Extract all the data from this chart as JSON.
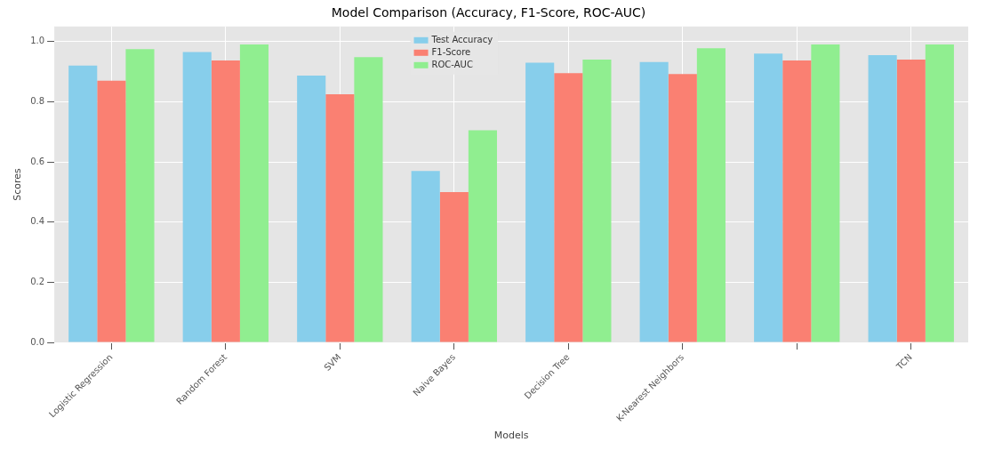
{
  "chart_data": {
    "type": "bar",
    "title": "Model Comparison (Accuracy, F1-Score, ROC-AUC)",
    "xlabel": "Models",
    "ylabel": "Scores",
    "categories": [
      "Logistic Regression",
      "Random Forest",
      "SVM",
      "Naive Bayes",
      "Decision Tree",
      "K-Nearest Neighbors",
      null,
      "TCN"
    ],
    "series": [
      {
        "name": "Test Accuracy",
        "color": "#87ceeb",
        "values": [
          0.92,
          0.965,
          0.887,
          0.57,
          0.93,
          0.932,
          0.96,
          0.955
        ]
      },
      {
        "name": "F1-Score",
        "color": "#fa8072",
        "values": [
          0.87,
          0.937,
          0.825,
          0.5,
          0.895,
          0.892,
          0.937,
          0.94
        ]
      },
      {
        "name": "ROC-AUC",
        "color": "#90ee90",
        "values": [
          0.975,
          0.99,
          0.948,
          0.705,
          0.94,
          0.978,
          0.99,
          0.99
        ]
      }
    ],
    "ylim": [
      0,
      1.05
    ],
    "yticks": [
      {
        "value": 0,
        "label": "0.0"
      },
      {
        "value": 0.2,
        "label": "0.2"
      },
      {
        "value": 0.4,
        "label": "0.4"
      },
      {
        "value": 0.6,
        "label": "0.6"
      },
      {
        "value": 0.8,
        "label": "0.8"
      },
      {
        "value": 1,
        "label": "1.0"
      }
    ],
    "grid": true,
    "legend": "top"
  }
}
